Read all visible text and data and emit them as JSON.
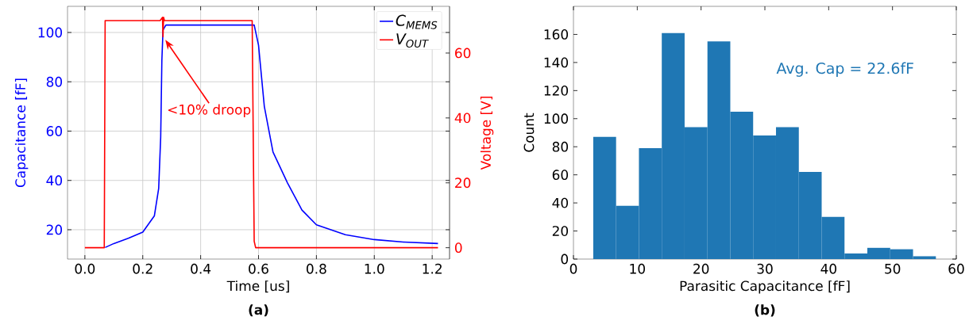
{
  "chart_data": [
    {
      "type": "line",
      "title": "(a)",
      "xlabel": "Time [us]",
      "ylabel": "Capacitance [fF]",
      "y2label": "Voltage [V]",
      "xlim": [
        -0.06,
        1.26
      ],
      "ylim": [
        8.1,
        110.6
      ],
      "y2lim": [
        -3.5,
        74.4
      ],
      "xticks": [
        {
          "value": 0,
          "label": "0.0"
        },
        {
          "value": 0.2,
          "label": "0.2"
        },
        {
          "value": 0.4,
          "label": "0.4"
        },
        {
          "value": 0.6,
          "label": "0.6"
        },
        {
          "value": 0.8,
          "label": "0.8"
        },
        {
          "value": 1.0,
          "label": "1.0"
        },
        {
          "value": 1.2,
          "label": "1.2"
        }
      ],
      "yticks": [
        20,
        40,
        60,
        80,
        100
      ],
      "y2ticks": [
        0,
        20,
        40,
        60
      ],
      "grid": true,
      "legend": "top right",
      "series": [
        {
          "name": "C$_{MEMS}$",
          "color": "#0000ff",
          "x": [
            0.07,
            0.1,
            0.15,
            0.2,
            0.24,
            0.255,
            0.262,
            0.266,
            0.27,
            0.28,
            0.585,
            0.6,
            0.62,
            0.65,
            0.7,
            0.75,
            0.8,
            0.9,
            1.0,
            1.1,
            1.22
          ],
          "values": [
            12.8,
            14.4,
            16.5,
            19,
            25.6,
            36.7,
            57.7,
            88.6,
            101,
            103,
            103,
            94.8,
            70,
            51.5,
            39,
            28,
            22,
            18,
            16,
            15,
            14.4
          ]
        },
        {
          "name": "V$_{OUT}$",
          "color": "#ff0000",
          "axis": "y2",
          "x": [
            0,
            0.067,
            0.07,
            0.26,
            0.268,
            0.27,
            0.272,
            0.275,
            0.578,
            0.585,
            0.59,
            1.22
          ],
          "values": [
            0,
            0,
            70,
            70,
            71,
            65,
            71,
            70,
            70,
            2,
            0,
            0
          ]
        }
      ],
      "annotations": [
        {
          "text": "<10% droop",
          "x": 0.278,
          "y": 97
        }
      ]
    },
    {
      "type": "histogram",
      "title": "(b)",
      "xlabel": "Parasitic Capacitance [fF]",
      "ylabel": "Count",
      "xlim": [
        0,
        60
      ],
      "ylim": [
        0,
        180
      ],
      "xticks": [
        0,
        10,
        20,
        30,
        40,
        50,
        60
      ],
      "yticks": [
        0,
        20,
        40,
        60,
        80,
        100,
        120,
        140,
        160
      ],
      "color": "#1f77b4",
      "bins": [
        3.1,
        6.68,
        10.26,
        13.84,
        17.42,
        21.0,
        24.58,
        28.16,
        31.74,
        35.32,
        38.9,
        42.48,
        46.06,
        49.64,
        53.22,
        56.8
      ],
      "values": [
        87,
        38,
        79,
        161,
        94,
        155,
        105,
        88,
        94,
        62,
        30,
        4,
        8,
        7,
        2
      ],
      "annotations": [
        "Avg. Cap = 22.6fF"
      ]
    }
  ]
}
